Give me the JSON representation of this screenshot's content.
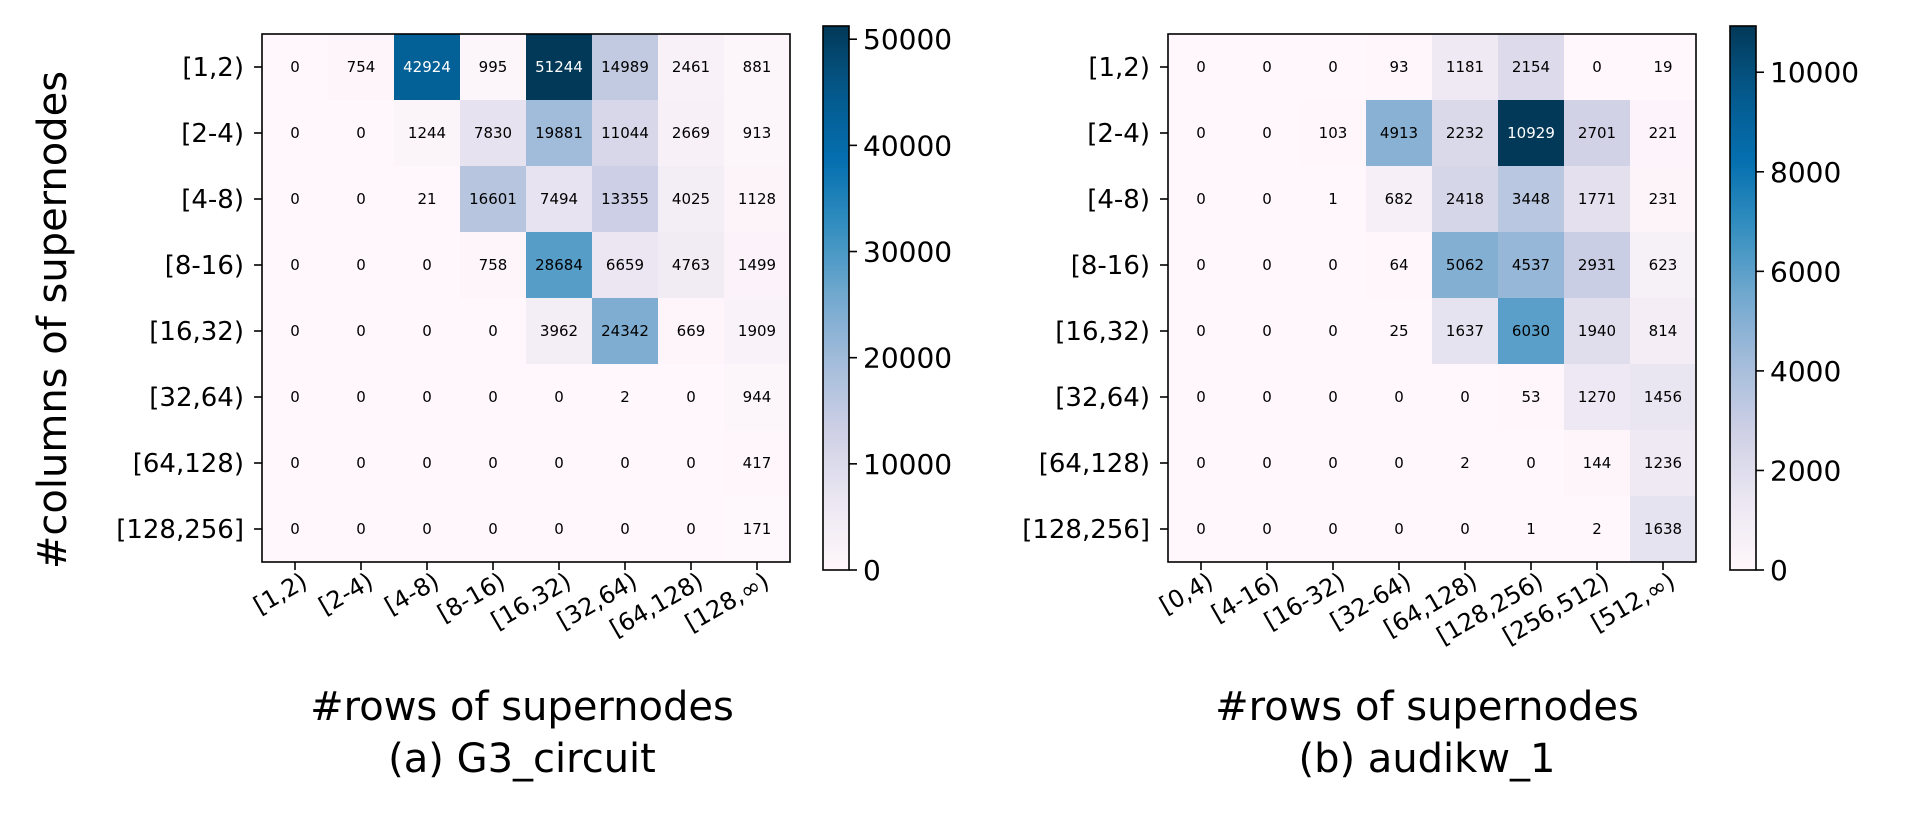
{
  "figure": {
    "shared_ylabel": "#columns of supernodes"
  },
  "chart_data": [
    {
      "type": "heatmap",
      "subtitle": "(a) G3_circuit",
      "xlabel": "#rows of supernodes",
      "ylabel": "#columns of supernodes",
      "x_categories": [
        "[1,2)",
        "[2-4)",
        "[4-8)",
        "[8-16)",
        "[16,32)",
        "[32,64)",
        "[64,128)",
        "[128,∞)"
      ],
      "y_categories": [
        "[1,2)",
        "[2-4)",
        "[4-8)",
        "[8-16)",
        "[16,32)",
        "[32,64)",
        "[64,128)",
        "[128,256]"
      ],
      "values": [
        [
          0,
          754,
          42924,
          995,
          51244,
          14989,
          2461,
          881
        ],
        [
          0,
          0,
          1244,
          7830,
          19881,
          11044,
          2669,
          913
        ],
        [
          0,
          0,
          21,
          16601,
          7494,
          13355,
          4025,
          1128
        ],
        [
          0,
          0,
          0,
          758,
          28684,
          6659,
          4763,
          1499
        ],
        [
          0,
          0,
          0,
          0,
          3962,
          24342,
          669,
          1909
        ],
        [
          0,
          0,
          0,
          0,
          0,
          2,
          0,
          944
        ],
        [
          0,
          0,
          0,
          0,
          0,
          0,
          0,
          417
        ],
        [
          0,
          0,
          0,
          0,
          0,
          0,
          0,
          171
        ]
      ],
      "colorbar": {
        "min": 0,
        "max": 51244,
        "ticks": [
          0,
          10000,
          20000,
          30000,
          40000,
          50000
        ]
      },
      "colormap": "PuBu"
    },
    {
      "type": "heatmap",
      "subtitle": "(b) audikw_1",
      "xlabel": "#rows of supernodes",
      "ylabel": "",
      "x_categories": [
        "[0,4)",
        "[4-16)",
        "[16-32)",
        "[32-64)",
        "[64,128)",
        "[128,256)",
        "[256,512)",
        "[512,∞)"
      ],
      "y_categories": [
        "[1,2)",
        "[2-4)",
        "[4-8)",
        "[8-16)",
        "[16,32)",
        "[32,64)",
        "[64,128)",
        "[128,256]"
      ],
      "values": [
        [
          0,
          0,
          0,
          93,
          1181,
          2154,
          0,
          19
        ],
        [
          0,
          0,
          103,
          4913,
          2232,
          10929,
          2701,
          221
        ],
        [
          0,
          0,
          1,
          682,
          2418,
          3448,
          1771,
          231
        ],
        [
          0,
          0,
          0,
          64,
          5062,
          4537,
          2931,
          623
        ],
        [
          0,
          0,
          0,
          25,
          1637,
          6030,
          1940,
          814
        ],
        [
          0,
          0,
          0,
          0,
          0,
          53,
          1270,
          1456
        ],
        [
          0,
          0,
          0,
          0,
          2,
          0,
          144,
          1236
        ],
        [
          0,
          0,
          0,
          0,
          0,
          1,
          2,
          1638
        ]
      ],
      "colorbar": {
        "min": 0,
        "max": 10929,
        "ticks": [
          0,
          2000,
          4000,
          6000,
          8000,
          10000
        ]
      },
      "colormap": "PuBu"
    }
  ]
}
